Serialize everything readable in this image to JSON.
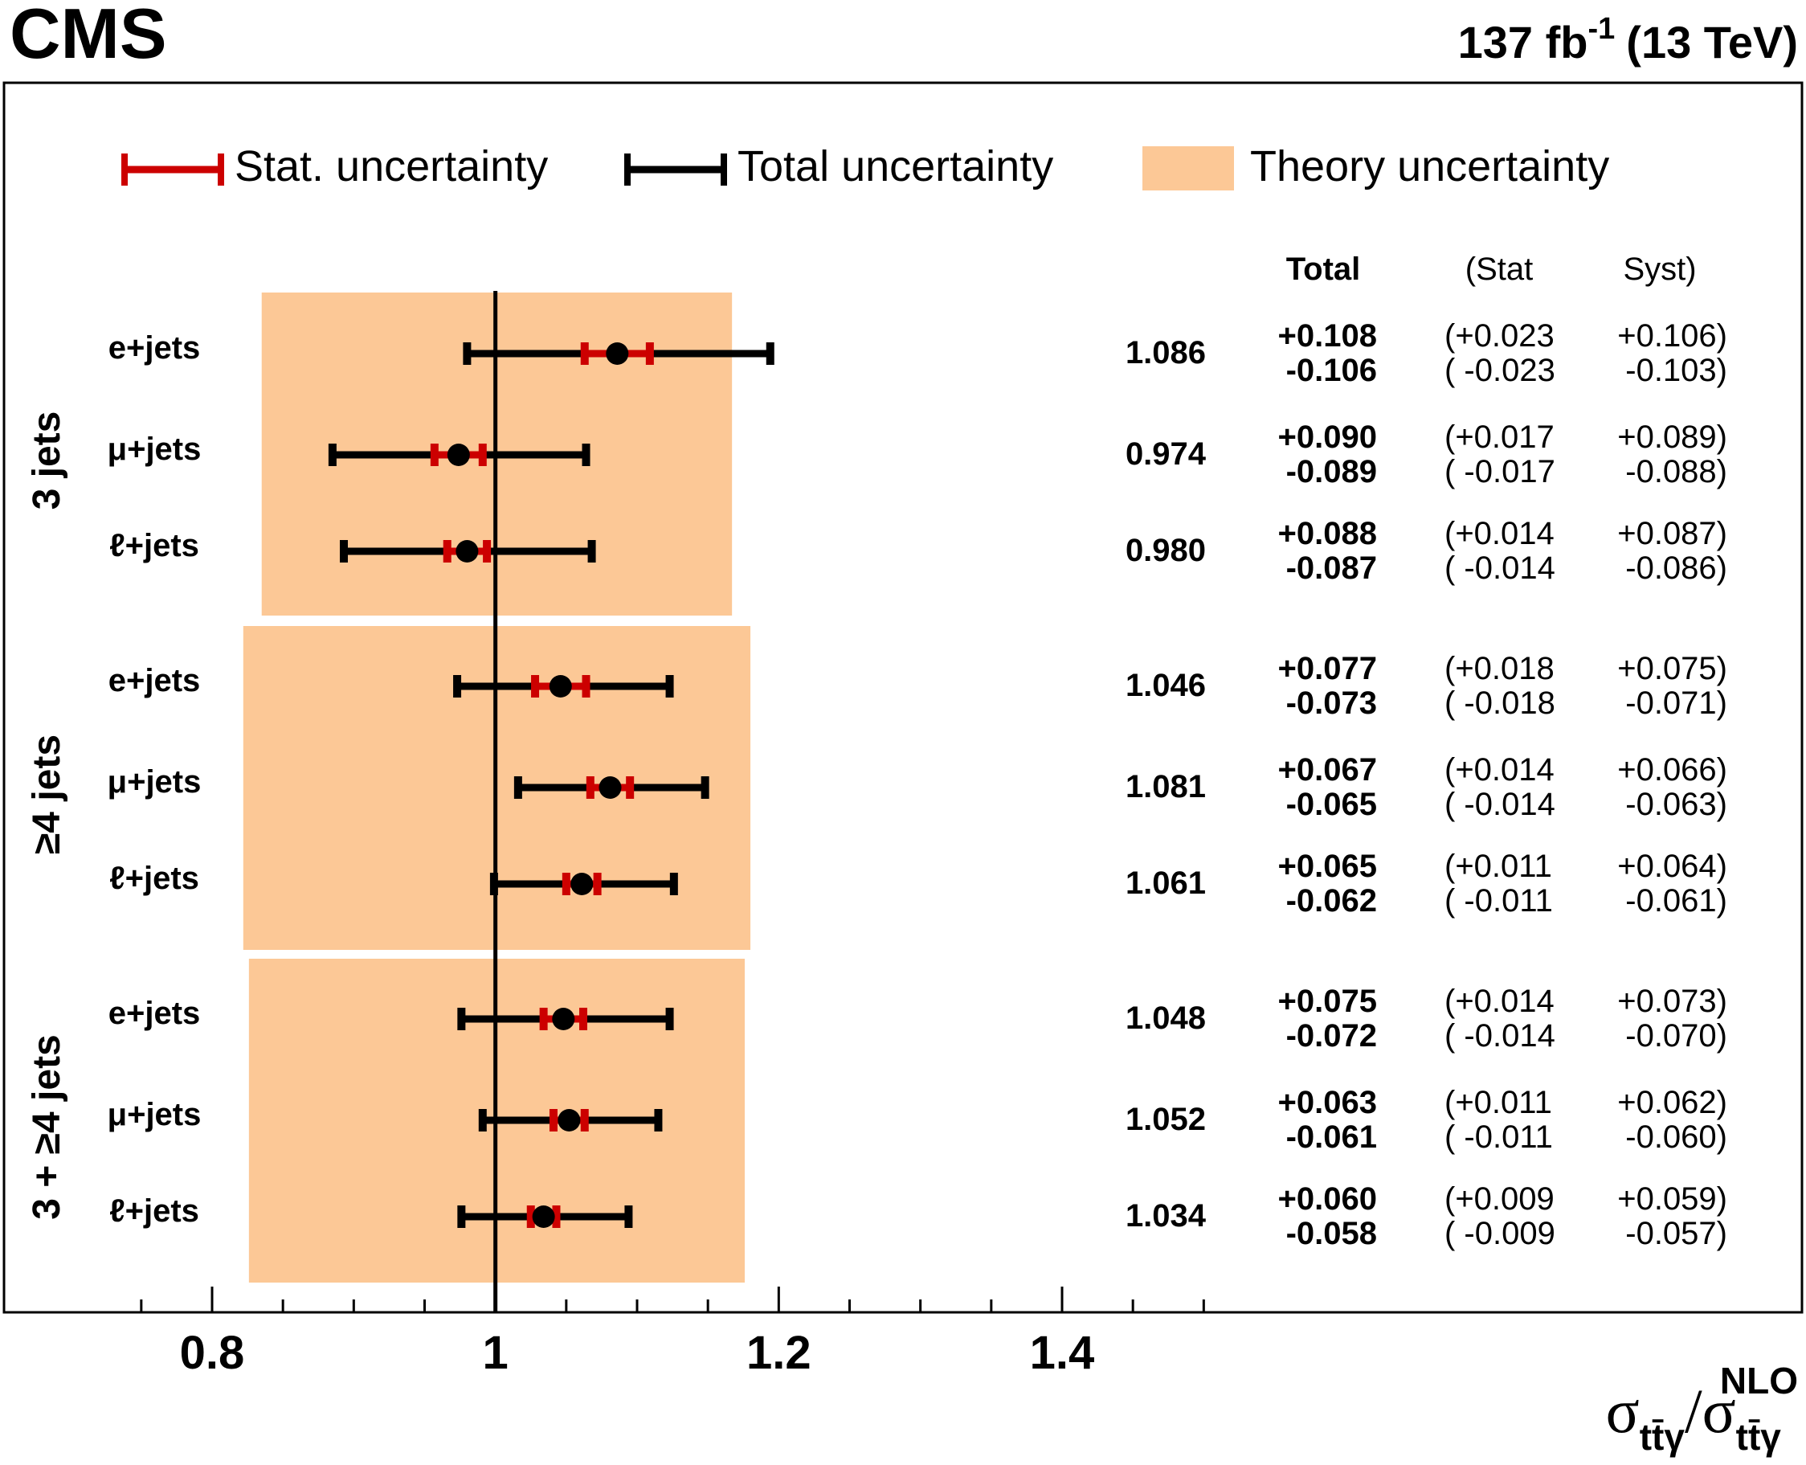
{
  "header": {
    "experiment": "CMS",
    "lumi_value": "137 fb",
    "lumi_exp": "-1",
    "energy": "(13 TeV)"
  },
  "legend": {
    "stat": "Stat. uncertainty",
    "total": "Total uncertainty",
    "theory": "Theory uncertainty"
  },
  "table_header": {
    "total": "Total",
    "stat": "(Stat",
    "syst": "Syst)"
  },
  "xaxis": {
    "title_main": "σ",
    "title_sub": "tt̄γ",
    "title_sup": "NLO",
    "ticks": [
      "0.8",
      "1",
      "1.2",
      "1.4"
    ]
  },
  "colors": {
    "stat": "#cc0000",
    "total": "#000000",
    "theory": "#fcc896",
    "marker": "#000000"
  },
  "chart_data": {
    "type": "scatter",
    "xlim": [
      0.7,
      1.55
    ],
    "major_ticks": [
      0.8,
      1.0,
      1.2,
      1.4
    ],
    "minor_tick_step": 0.05,
    "reference_line": 1.0,
    "groups": [
      {
        "label": "3 jets",
        "theory_band": [
          0.835,
          1.167
        ],
        "rows": [
          {
            "label": "e+jets",
            "value": 1.086,
            "value_text": "1.086",
            "tot_up": "+0.108",
            "tot_dn": "-0.106",
            "stat_up": "(+0.023",
            "stat_dn": "( -0.023",
            "syst_up": "+0.106)",
            "syst_dn": "-0.103)",
            "tot": [
              0.106,
              0.108
            ],
            "stat": [
              0.023,
              0.023
            ]
          },
          {
            "label": "μ+jets",
            "value": 0.974,
            "value_text": "0.974",
            "tot_up": "+0.090",
            "tot_dn": "-0.089",
            "stat_up": "(+0.017",
            "stat_dn": "( -0.017",
            "syst_up": "+0.089)",
            "syst_dn": "-0.088)",
            "tot": [
              0.089,
              0.09
            ],
            "stat": [
              0.017,
              0.017
            ]
          },
          {
            "label": "ℓ+jets",
            "value": 0.98,
            "value_text": "0.980",
            "tot_up": "+0.088",
            "tot_dn": "-0.087",
            "stat_up": "(+0.014",
            "stat_dn": "( -0.014",
            "syst_up": "+0.087)",
            "syst_dn": "-0.086)",
            "tot": [
              0.087,
              0.088
            ],
            "stat": [
              0.014,
              0.014
            ]
          }
        ]
      },
      {
        "label": "≥4 jets",
        "theory_band": [
          0.822,
          1.18
        ],
        "rows": [
          {
            "label": "e+jets",
            "value": 1.046,
            "value_text": "1.046",
            "tot_up": "+0.077",
            "tot_dn": "-0.073",
            "stat_up": "(+0.018",
            "stat_dn": "( -0.018",
            "syst_up": "+0.075)",
            "syst_dn": "-0.071)",
            "tot": [
              0.073,
              0.077
            ],
            "stat": [
              0.018,
              0.018
            ]
          },
          {
            "label": "μ+jets",
            "value": 1.081,
            "value_text": "1.081",
            "tot_up": "+0.067",
            "tot_dn": "-0.065",
            "stat_up": "(+0.014",
            "stat_dn": "( -0.014",
            "syst_up": "+0.066)",
            "syst_dn": "-0.063)",
            "tot": [
              0.065,
              0.067
            ],
            "stat": [
              0.014,
              0.014
            ]
          },
          {
            "label": "ℓ+jets",
            "value": 1.061,
            "value_text": "1.061",
            "tot_up": "+0.065",
            "tot_dn": "-0.062",
            "stat_up": "(+0.011",
            "stat_dn": "( -0.011",
            "syst_up": "+0.064)",
            "syst_dn": "-0.061)",
            "tot": [
              0.062,
              0.065
            ],
            "stat": [
              0.011,
              0.011
            ]
          }
        ]
      },
      {
        "label": "3 + ≥4 jets",
        "theory_band": [
          0.826,
          1.176
        ],
        "rows": [
          {
            "label": "e+jets",
            "value": 1.048,
            "value_text": "1.048",
            "tot_up": "+0.075",
            "tot_dn": "-0.072",
            "stat_up": "(+0.014",
            "stat_dn": "( -0.014",
            "syst_up": "+0.073)",
            "syst_dn": "-0.070)",
            "tot": [
              0.072,
              0.075
            ],
            "stat": [
              0.014,
              0.014
            ]
          },
          {
            "label": "μ+jets",
            "value": 1.052,
            "value_text": "1.052",
            "tot_up": "+0.063",
            "tot_dn": "-0.061",
            "stat_up": "(+0.011",
            "stat_dn": "( -0.011",
            "syst_up": "+0.062)",
            "syst_dn": "-0.060)",
            "tot": [
              0.061,
              0.063
            ],
            "stat": [
              0.011,
              0.011
            ]
          },
          {
            "label": "ℓ+jets",
            "value": 1.034,
            "value_text": "1.034",
            "tot_up": "+0.060",
            "tot_dn": "-0.058",
            "stat_up": "(+0.009",
            "stat_dn": "( -0.009",
            "syst_up": "+0.059)",
            "syst_dn": "-0.057)",
            "tot": [
              0.058,
              0.06
            ],
            "stat": [
              0.009,
              0.009
            ]
          }
        ]
      }
    ]
  }
}
